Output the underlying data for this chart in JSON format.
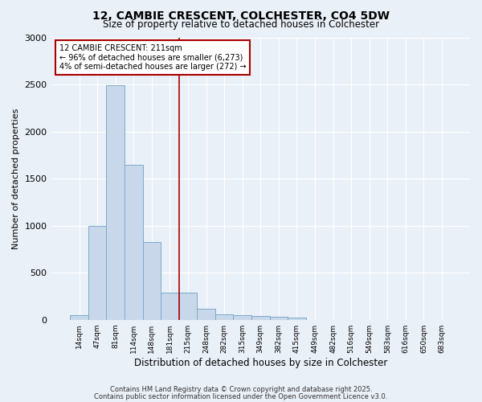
{
  "title": "12, CAMBIE CRESCENT, COLCHESTER, CO4 5DW",
  "subtitle": "Size of property relative to detached houses in Colchester",
  "xlabel": "Distribution of detached houses by size in Colchester",
  "ylabel": "Number of detached properties",
  "bar_color": "#c8d8ea",
  "bar_edge_color": "#7aaacb",
  "bg_color": "#eaf0f8",
  "grid_color": "#ffffff",
  "categories": [
    "14sqm",
    "47sqm",
    "81sqm",
    "114sqm",
    "148sqm",
    "181sqm",
    "215sqm",
    "248sqm",
    "282sqm",
    "315sqm",
    "349sqm",
    "382sqm",
    "415sqm",
    "449sqm",
    "482sqm",
    "516sqm",
    "549sqm",
    "583sqm",
    "616sqm",
    "650sqm",
    "683sqm"
  ],
  "values": [
    50,
    1000,
    2490,
    1650,
    830,
    290,
    285,
    120,
    55,
    50,
    40,
    30,
    20,
    0,
    0,
    0,
    0,
    0,
    0,
    0,
    0
  ],
  "ylim": [
    0,
    3000
  ],
  "yticks": [
    0,
    500,
    1000,
    1500,
    2000,
    2500,
    3000
  ],
  "annotation_text": "12 CAMBIE CRESCENT: 211sqm\n← 96% of detached houses are smaller (6,273)\n4% of semi-detached houses are larger (272) →",
  "vline_index": 5.5,
  "vline_color": "#aa0000",
  "footer1": "Contains HM Land Registry data © Crown copyright and database right 2025.",
  "footer2": "Contains public sector information licensed under the Open Government Licence v3.0."
}
